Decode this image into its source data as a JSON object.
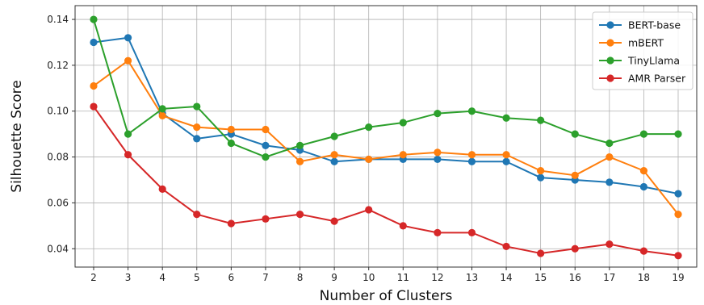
{
  "chart_data": {
    "type": "line",
    "title": "",
    "xlabel": "Number of Clusters",
    "ylabel": "Silhouette Score",
    "x": [
      2,
      3,
      4,
      5,
      6,
      7,
      8,
      9,
      10,
      11,
      12,
      13,
      14,
      15,
      16,
      17,
      18,
      19
    ],
    "ylim": [
      0.032,
      0.146
    ],
    "yticks": [
      0.04,
      0.06,
      0.08,
      0.1,
      0.12,
      0.14
    ],
    "ytick_labels": [
      "0.04",
      "0.06",
      "0.08",
      "0.10",
      "0.12",
      "0.14"
    ],
    "grid": true,
    "legend_position": "top-right",
    "series": [
      {
        "name": "BERT-base",
        "color": "#1f77b4",
        "values": [
          0.13,
          0.132,
          0.099,
          0.088,
          0.09,
          0.085,
          0.083,
          0.078,
          0.079,
          0.079,
          0.079,
          0.078,
          0.078,
          0.071,
          0.07,
          0.069,
          0.067,
          0.064
        ]
      },
      {
        "name": "mBERT",
        "color": "#ff7f0e",
        "values": [
          0.111,
          0.122,
          0.098,
          0.093,
          0.092,
          0.092,
          0.078,
          0.081,
          0.079,
          0.081,
          0.082,
          0.081,
          0.081,
          0.074,
          0.072,
          0.08,
          0.074,
          0.055
        ]
      },
      {
        "name": "TinyLlama",
        "color": "#2ca02c",
        "values": [
          0.14,
          0.09,
          0.101,
          0.102,
          0.086,
          0.08,
          0.085,
          0.089,
          0.093,
          0.095,
          0.099,
          0.1,
          0.097,
          0.096,
          0.09,
          0.086,
          0.09,
          0.09
        ]
      },
      {
        "name": "AMR Parser",
        "color": "#d62728",
        "values": [
          0.102,
          0.081,
          0.066,
          0.055,
          0.051,
          0.053,
          0.055,
          0.052,
          0.057,
          0.05,
          0.047,
          0.047,
          0.041,
          0.038,
          0.04,
          0.042,
          0.039,
          0.037
        ]
      }
    ]
  }
}
